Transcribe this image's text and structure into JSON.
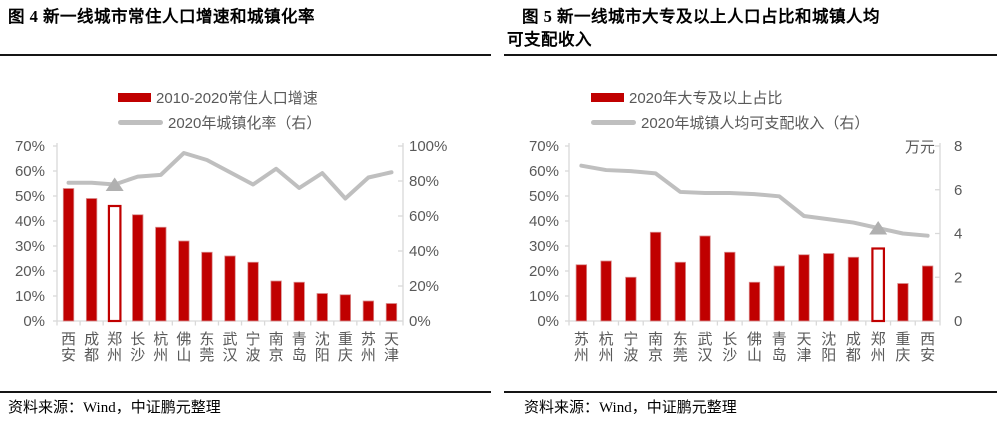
{
  "page": {
    "source_note": "资料来源：Wind，中证鹏元整理"
  },
  "colors": {
    "bar_red": "#c00000",
    "bar_edge": "#d98c8c",
    "line_gray": "#bfbfbf",
    "marker_gray": "#b0b0b0",
    "axis_text": "#595959",
    "axis_line": "#d9d9d9"
  },
  "chart_data": [
    {
      "type": "bar",
      "title_lines": [
        "图 4  新一线城市常住人口增速和城镇化率"
      ],
      "categories": [
        "西安",
        "成都",
        "郑州",
        "长沙",
        "杭州",
        "佛山",
        "东莞",
        "武汉",
        "宁波",
        "南京",
        "青岛",
        "沈阳",
        "重庆",
        "苏州",
        "天津"
      ],
      "series": [
        {
          "name": "2010-2020常住人口增速",
          "type": "bar",
          "axis": "left",
          "values": [
            53,
            49,
            46,
            42.5,
            37.5,
            32,
            27.5,
            26,
            23.5,
            16,
            15.5,
            11,
            10.5,
            8,
            7
          ]
        },
        {
          "name": "2020年城镇化率（右）",
          "type": "line",
          "axis": "right",
          "values": [
            79,
            79,
            78,
            82.5,
            83.5,
            96,
            92,
            85,
            78,
            87,
            76,
            84.5,
            70,
            82,
            85
          ]
        }
      ],
      "left_axis": {
        "min": 0,
        "max": 70,
        "tick_labels": [
          "0%",
          "10%",
          "20%",
          "30%",
          "40%",
          "50%",
          "60%",
          "70%"
        ]
      },
      "right_axis": {
        "min": 0,
        "max": 100,
        "tick_labels": [
          "0%",
          "20%",
          "40%",
          "60%",
          "80%",
          "100%"
        ],
        "unit": ""
      },
      "highlight_category": "郑州",
      "legend_position": "top",
      "gridlines": false
    },
    {
      "type": "bar",
      "title_lines": [
        "图 5  新一线城市大专及以上人口占比和城镇人均",
        "可支配收入"
      ],
      "categories": [
        "苏州",
        "杭州",
        "宁波",
        "南京",
        "东莞",
        "武汉",
        "长沙",
        "佛山",
        "青岛",
        "天津",
        "沈阳",
        "成都",
        "郑州",
        "重庆",
        "西安"
      ],
      "series": [
        {
          "name": "2020年大专及以上占比",
          "type": "bar",
          "axis": "left",
          "values": [
            22.5,
            24,
            17.5,
            35.5,
            23.5,
            34,
            27.5,
            15.5,
            22,
            26.5,
            27,
            25.5,
            29,
            15,
            22
          ]
        },
        {
          "name": "2020年城镇人均可支配收入（右）",
          "type": "line",
          "axis": "right",
          "values": [
            7.1,
            6.9,
            6.85,
            6.75,
            5.9,
            5.85,
            5.85,
            5.8,
            5.7,
            4.8,
            4.65,
            4.5,
            4.25,
            4.0,
            3.9
          ]
        }
      ],
      "left_axis": {
        "min": 0,
        "max": 70,
        "tick_labels": [
          "0%",
          "10%",
          "20%",
          "30%",
          "40%",
          "50%",
          "60%",
          "70%"
        ]
      },
      "right_axis": {
        "min": 0,
        "max": 8,
        "tick_labels": [
          "0",
          "2",
          "4",
          "6",
          "8"
        ],
        "unit": "万元"
      },
      "highlight_category": "郑州",
      "legend_position": "top",
      "gridlines": false
    }
  ]
}
